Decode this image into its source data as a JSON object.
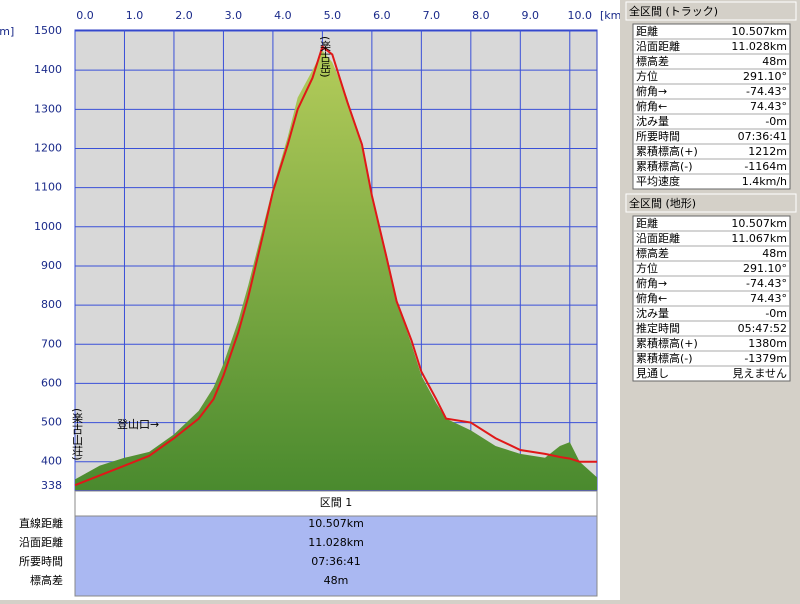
{
  "chart_data": {
    "type": "area",
    "x_unit_label": "[km]",
    "y_unit_label": "[m]",
    "xlim": [
      0,
      10.55
    ],
    "xticks": [
      {
        "value": 0,
        "label": "0.0"
      },
      {
        "value": 1,
        "label": "1.0"
      },
      {
        "value": 2,
        "label": "2.0"
      },
      {
        "value": 3,
        "label": "3.0"
      },
      {
        "value": 4,
        "label": "4.0"
      },
      {
        "value": 5,
        "label": "5.0"
      },
      {
        "value": 6,
        "label": "6.0"
      },
      {
        "value": 7,
        "label": "7.0"
      },
      {
        "value": 8,
        "label": "8.0"
      },
      {
        "value": 9,
        "label": "9.0"
      },
      {
        "value": 10,
        "label": "10.0"
      }
    ],
    "ylim": [
      338,
      1500
    ],
    "yticks": [
      338,
      400,
      500,
      600,
      700,
      800,
      900,
      1000,
      1100,
      1200,
      1300,
      1400,
      1500
    ],
    "grid": true,
    "x": [
      0,
      0.5,
      1.0,
      1.5,
      2.0,
      2.5,
      2.8,
      3.0,
      3.3,
      3.5,
      3.8,
      4.0,
      4.3,
      4.5,
      4.8,
      5.0,
      5.2,
      5.5,
      5.8,
      6.0,
      6.3,
      6.5,
      6.8,
      7.0,
      7.3,
      7.5,
      8.0,
      8.5,
      9.0,
      9.5,
      9.8,
      10.0,
      10.2,
      10.55
    ],
    "series": [
      {
        "type": "area",
        "color": "#6f9e3c",
        "values": [
          355,
          390,
          410,
          425,
          470,
          530,
          590,
          650,
          760,
          850,
          1000,
          1100,
          1230,
          1330,
          1400,
          1450,
          1420,
          1330,
          1200,
          1080,
          930,
          810,
          700,
          620,
          550,
          510,
          480,
          440,
          420,
          410,
          440,
          450,
          400,
          360
        ]
      },
      {
        "type": "line",
        "color": "#e01818",
        "values": [
          340,
          365,
          390,
          415,
          460,
          510,
          560,
          620,
          730,
          820,
          980,
          1090,
          1210,
          1300,
          1380,
          1460,
          1440,
          1320,
          1210,
          1080,
          920,
          810,
          710,
          630,
          560,
          510,
          500,
          460,
          430,
          420,
          412,
          408,
          400,
          400
        ]
      }
    ],
    "annotations": [
      "(楽古岳)",
      "(楽古山荘)",
      "登山口→"
    ]
  },
  "segment": {
    "title": "区間 1",
    "rows": [
      [
        "直線距離",
        "10.507km"
      ],
      [
        "沿面距離",
        "11.028km"
      ],
      [
        "所要時間",
        "07:36:41"
      ],
      [
        "標高差",
        "48m"
      ]
    ]
  },
  "panels": [
    {
      "title": "全区間 (トラック)",
      "rows": [
        [
          "距離",
          "10.507km"
        ],
        [
          "沿面距離",
          "11.028km"
        ],
        [
          "標高差",
          "48m"
        ],
        [
          "方位",
          "291.10°"
        ],
        [
          "俯角→",
          "-74.43°"
        ],
        [
          "俯角←",
          "74.43°"
        ],
        [
          "沈み量",
          "-0m"
        ],
        [
          "所要時間",
          "07:36:41"
        ],
        [
          "累積標高(+)",
          "1212m"
        ],
        [
          "累積標高(-)",
          "-1164m"
        ],
        [
          "平均速度",
          "1.4km/h"
        ]
      ]
    },
    {
      "title": "全区間 (地形)",
      "rows": [
        [
          "距離",
          "10.507km"
        ],
        [
          "沿面距離",
          "11.067km"
        ],
        [
          "標高差",
          "48m"
        ],
        [
          "方位",
          "291.10°"
        ],
        [
          "俯角→",
          "-74.43°"
        ],
        [
          "俯角←",
          "74.43°"
        ],
        [
          "沈み量",
          "-0m"
        ],
        [
          "推定時間",
          "05:47:52"
        ],
        [
          "累積標高(+)",
          "1380m"
        ],
        [
          "累積標高(-)",
          "-1379m"
        ],
        [
          "見通し",
          "見えません"
        ]
      ]
    }
  ]
}
